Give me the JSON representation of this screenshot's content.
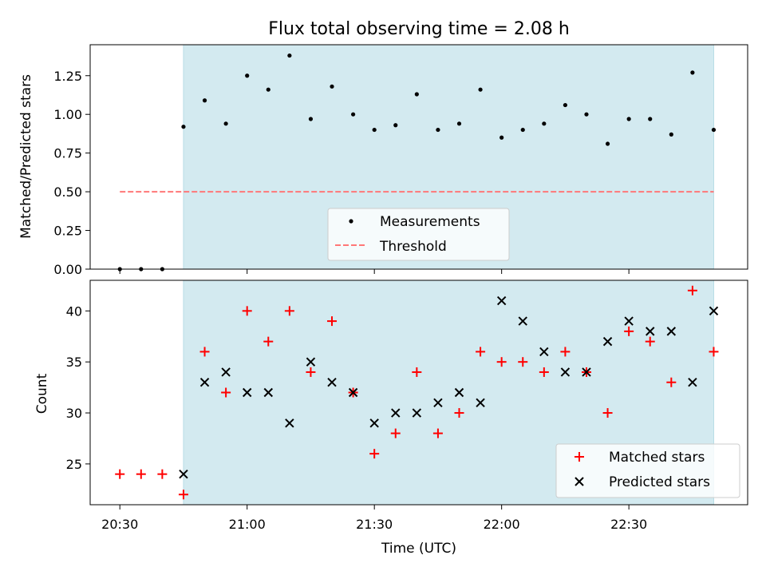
{
  "figure": {
    "title": "Flux total observing time = 2.08 h",
    "xlabel": "Time (UTC)"
  },
  "chart_data": [
    {
      "type": "scatter",
      "panel": "top",
      "ylabel": "Matched/Predicted stars",
      "xlim": [
        "20:23",
        "22:58"
      ],
      "ylim": [
        0.0,
        1.45
      ],
      "yticks": [
        "0.00",
        "0.25",
        "0.50",
        "0.75",
        "1.00",
        "1.25"
      ],
      "shaded_span": {
        "x": [
          "20:45",
          "22:50"
        ],
        "color": "#d3eaf0"
      },
      "legend_position": "lower center",
      "series": [
        {
          "name": "Measurements",
          "marker": "dot",
          "color": "#000000",
          "x": [
            "20:30",
            "20:35",
            "20:40",
            "20:45",
            "20:50",
            "20:55",
            "21:00",
            "21:05",
            "21:10",
            "21:15",
            "21:20",
            "21:25",
            "21:30",
            "21:35",
            "21:40",
            "21:45",
            "21:50",
            "21:55",
            "22:00",
            "22:05",
            "22:10",
            "22:15",
            "22:20",
            "22:25",
            "22:30",
            "22:35",
            "22:40",
            "22:45",
            "22:50"
          ],
          "y": [
            0.0,
            0.0,
            0.0,
            0.92,
            1.09,
            0.94,
            1.25,
            1.16,
            1.38,
            0.97,
            1.18,
            1.0,
            0.9,
            0.93,
            1.13,
            0.9,
            0.94,
            1.16,
            0.85,
            0.9,
            0.94,
            1.06,
            1.0,
            0.81,
            0.97,
            0.97,
            0.87,
            1.27,
            0.9
          ]
        },
        {
          "name": "Threshold",
          "line": "dashed",
          "color": "#ff7777",
          "x": [
            "20:30",
            "22:50"
          ],
          "y": [
            0.5,
            0.5
          ]
        }
      ]
    },
    {
      "type": "scatter",
      "panel": "bottom",
      "ylabel": "Count",
      "xlabel": "Time (UTC)",
      "xlim": [
        "20:23",
        "22:58"
      ],
      "ylim": [
        21,
        43
      ],
      "yticks": [
        "25",
        "30",
        "35",
        "40"
      ],
      "xticks": [
        "20:30",
        "21:00",
        "21:30",
        "22:00",
        "22:30"
      ],
      "shaded_span": {
        "x": [
          "20:45",
          "22:50"
        ],
        "color": "#d3eaf0"
      },
      "legend_position": "lower right",
      "series": [
        {
          "name": "Matched stars",
          "marker": "plus",
          "color": "#ff0000",
          "x": [
            "20:30",
            "20:35",
            "20:40",
            "20:45",
            "20:50",
            "20:55",
            "21:00",
            "21:05",
            "21:10",
            "21:15",
            "21:20",
            "21:25",
            "21:30",
            "21:35",
            "21:40",
            "21:45",
            "21:50",
            "21:55",
            "22:00",
            "22:05",
            "22:10",
            "22:15",
            "22:20",
            "22:25",
            "22:30",
            "22:35",
            "22:40",
            "22:45",
            "22:50"
          ],
          "y": [
            24,
            24,
            24,
            22,
            36,
            32,
            40,
            37,
            40,
            34,
            39,
            32,
            26,
            28,
            34,
            28,
            30,
            36,
            35,
            35,
            34,
            36,
            34,
            30,
            38,
            37,
            33,
            42,
            36
          ]
        },
        {
          "name": "Predicted stars",
          "marker": "x",
          "color": "#000000",
          "x": [
            "20:45",
            "20:50",
            "20:55",
            "21:00",
            "21:05",
            "21:10",
            "21:15",
            "21:20",
            "21:25",
            "21:30",
            "21:35",
            "21:40",
            "21:45",
            "21:50",
            "21:55",
            "22:00",
            "22:05",
            "22:10",
            "22:15",
            "22:20",
            "22:25",
            "22:30",
            "22:35",
            "22:40",
            "22:45",
            "22:50"
          ],
          "y": [
            24,
            33,
            34,
            32,
            32,
            29,
            35,
            33,
            32,
            29,
            30,
            30,
            31,
            32,
            31,
            41,
            39,
            36,
            34,
            34,
            37,
            39,
            38,
            38,
            33,
            40
          ]
        }
      ]
    }
  ]
}
